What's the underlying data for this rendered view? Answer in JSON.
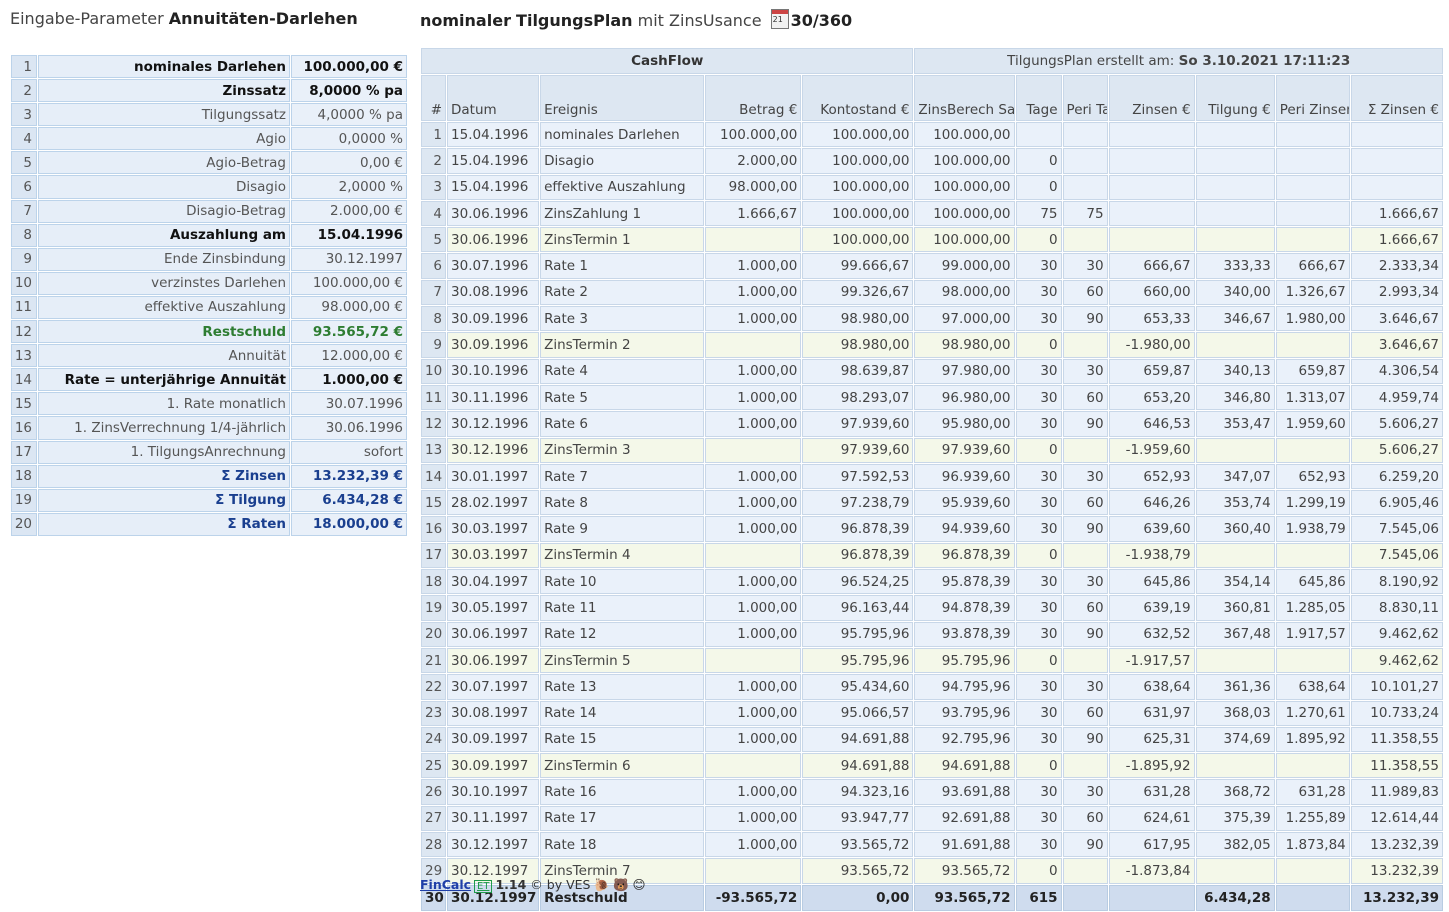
{
  "left_title": {
    "prefix": "Eingabe-Parameter",
    "bold": "Annuitäten-Darlehen"
  },
  "right_title": {
    "bold1": "nominaler",
    "bold2": "TilgungsPlan",
    "mid": "mit ZinsUsance",
    "usance": "30/360",
    "calendar_day": "21"
  },
  "params": [
    {
      "n": "1",
      "label": "nominales Darlehen",
      "value": "100.000,00 €",
      "style": "b"
    },
    {
      "n": "2",
      "label": "Zinssatz",
      "value": "8,0000 % pa",
      "style": "b"
    },
    {
      "n": "3",
      "label": "Tilgungssatz",
      "value": "4,0000 % pa",
      "style": ""
    },
    {
      "n": "4",
      "label": "Agio",
      "value": "0,0000 %",
      "style": ""
    },
    {
      "n": "5",
      "label": "Agio-Betrag",
      "value": "0,00 €",
      "style": ""
    },
    {
      "n": "6",
      "label": "Disagio",
      "value": "2,0000 %",
      "style": ""
    },
    {
      "n": "7",
      "label": "Disagio-Betrag",
      "value": "2.000,00 €",
      "style": ""
    },
    {
      "n": "8",
      "label": "Auszahlung am",
      "value": "15.04.1996",
      "style": "b"
    },
    {
      "n": "9",
      "label": "Ende Zinsbindung",
      "value": "30.12.1997",
      "style": ""
    },
    {
      "n": "10",
      "label": "verzinstes Darlehen",
      "value": "100.000,00 €",
      "style": ""
    },
    {
      "n": "11",
      "label": "effektive Auszahlung",
      "value": "98.000,00 €",
      "style": ""
    },
    {
      "n": "12",
      "label": "Restschuld",
      "value": "93.565,72 €",
      "style": "g"
    },
    {
      "n": "13",
      "label": "Annuität",
      "value": "12.000,00 €",
      "style": ""
    },
    {
      "n": "14",
      "label": "Rate = unterjährige Annuität",
      "value": "1.000,00 €",
      "style": "b"
    },
    {
      "n": "15",
      "label": "1. Rate monatlich",
      "value": "30.07.1996",
      "style": ""
    },
    {
      "n": "16",
      "label": "1. ZinsVerrechnung 1/4-jährlich",
      "value": "30.06.1996",
      "style": ""
    },
    {
      "n": "17",
      "label": "1. TilgungsAnrechnung",
      "value": "sofort",
      "style": ""
    },
    {
      "n": "18",
      "label": "Σ Zinsen",
      "value": "13.232,39 €",
      "style": "s"
    },
    {
      "n": "19",
      "label": "Σ Tilgung",
      "value": "6.434,28 €",
      "style": "s"
    },
    {
      "n": "20",
      "label": "Σ Raten",
      "value": "18.000,00 €",
      "style": "s"
    }
  ],
  "plan_head": {
    "cashflow": "CashFlow",
    "created_label": "TilgungsPlan erstellt am:",
    "created_value": "So 3.10.2021 17:11:23",
    "cols": [
      "#",
      "Datum",
      "Ereignis",
      "Betrag €",
      "Kontostand €",
      "ZinsBerech Saldo €",
      "Tage",
      "Peri Tage",
      "Zinsen €",
      "Tilgung €",
      "Peri Zinsen €",
      "Σ Zinsen €"
    ]
  },
  "plan_rows": [
    {
      "n": "1",
      "datum": "15.04.1996",
      "ereignis": "nominales Darlehen",
      "betrag": "100.000,00",
      "konto": "100.000,00",
      "saldo": "100.000,00",
      "tage": "",
      "peri_tage": "",
      "zinsen": "",
      "tilgung": "",
      "peri_zinsen": "",
      "sum_zinsen": "",
      "termin": false
    },
    {
      "n": "2",
      "datum": "15.04.1996",
      "ereignis": "Disagio",
      "betrag": "2.000,00",
      "konto": "100.000,00",
      "saldo": "100.000,00",
      "tage": "0",
      "peri_tage": "",
      "zinsen": "",
      "tilgung": "",
      "peri_zinsen": "",
      "sum_zinsen": "",
      "termin": false
    },
    {
      "n": "3",
      "datum": "15.04.1996",
      "ereignis": "effektive Auszahlung",
      "betrag": "98.000,00",
      "konto": "100.000,00",
      "saldo": "100.000,00",
      "tage": "0",
      "peri_tage": "",
      "zinsen": "",
      "tilgung": "",
      "peri_zinsen": "",
      "sum_zinsen": "",
      "termin": false
    },
    {
      "n": "4",
      "datum": "30.06.1996",
      "ereignis": "ZinsZahlung 1",
      "betrag": "1.666,67",
      "konto": "100.000,00",
      "saldo": "100.000,00",
      "tage": "75",
      "peri_tage": "75",
      "zinsen": "",
      "tilgung": "",
      "peri_zinsen": "",
      "sum_zinsen": "1.666,67",
      "termin": false
    },
    {
      "n": "5",
      "datum": "30.06.1996",
      "ereignis": "ZinsTermin 1",
      "betrag": "",
      "konto": "100.000,00",
      "saldo": "100.000,00",
      "tage": "0",
      "peri_tage": "",
      "zinsen": "",
      "tilgung": "",
      "peri_zinsen": "",
      "sum_zinsen": "1.666,67",
      "termin": true
    },
    {
      "n": "6",
      "datum": "30.07.1996",
      "ereignis": "Rate 1",
      "betrag": "1.000,00",
      "konto": "99.666,67",
      "saldo": "99.000,00",
      "tage": "30",
      "peri_tage": "30",
      "zinsen": "666,67",
      "tilgung": "333,33",
      "peri_zinsen": "666,67",
      "sum_zinsen": "2.333,34",
      "termin": false
    },
    {
      "n": "7",
      "datum": "30.08.1996",
      "ereignis": "Rate 2",
      "betrag": "1.000,00",
      "konto": "99.326,67",
      "saldo": "98.000,00",
      "tage": "30",
      "peri_tage": "60",
      "zinsen": "660,00",
      "tilgung": "340,00",
      "peri_zinsen": "1.326,67",
      "sum_zinsen": "2.993,34",
      "termin": false
    },
    {
      "n": "8",
      "datum": "30.09.1996",
      "ereignis": "Rate 3",
      "betrag": "1.000,00",
      "konto": "98.980,00",
      "saldo": "97.000,00",
      "tage": "30",
      "peri_tage": "90",
      "zinsen": "653,33",
      "tilgung": "346,67",
      "peri_zinsen": "1.980,00",
      "sum_zinsen": "3.646,67",
      "termin": false
    },
    {
      "n": "9",
      "datum": "30.09.1996",
      "ereignis": "ZinsTermin 2",
      "betrag": "",
      "konto": "98.980,00",
      "saldo": "98.980,00",
      "tage": "0",
      "peri_tage": "",
      "zinsen": "-1.980,00",
      "tilgung": "",
      "peri_zinsen": "",
      "sum_zinsen": "3.646,67",
      "termin": true
    },
    {
      "n": "10",
      "datum": "30.10.1996",
      "ereignis": "Rate 4",
      "betrag": "1.000,00",
      "konto": "98.639,87",
      "saldo": "97.980,00",
      "tage": "30",
      "peri_tage": "30",
      "zinsen": "659,87",
      "tilgung": "340,13",
      "peri_zinsen": "659,87",
      "sum_zinsen": "4.306,54",
      "termin": false
    },
    {
      "n": "11",
      "datum": "30.11.1996",
      "ereignis": "Rate 5",
      "betrag": "1.000,00",
      "konto": "98.293,07",
      "saldo": "96.980,00",
      "tage": "30",
      "peri_tage": "60",
      "zinsen": "653,20",
      "tilgung": "346,80",
      "peri_zinsen": "1.313,07",
      "sum_zinsen": "4.959,74",
      "termin": false
    },
    {
      "n": "12",
      "datum": "30.12.1996",
      "ereignis": "Rate 6",
      "betrag": "1.000,00",
      "konto": "97.939,60",
      "saldo": "95.980,00",
      "tage": "30",
      "peri_tage": "90",
      "zinsen": "646,53",
      "tilgung": "353,47",
      "peri_zinsen": "1.959,60",
      "sum_zinsen": "5.606,27",
      "termin": false
    },
    {
      "n": "13",
      "datum": "30.12.1996",
      "ereignis": "ZinsTermin 3",
      "betrag": "",
      "konto": "97.939,60",
      "saldo": "97.939,60",
      "tage": "0",
      "peri_tage": "",
      "zinsen": "-1.959,60",
      "tilgung": "",
      "peri_zinsen": "",
      "sum_zinsen": "5.606,27",
      "termin": true
    },
    {
      "n": "14",
      "datum": "30.01.1997",
      "ereignis": "Rate 7",
      "betrag": "1.000,00",
      "konto": "97.592,53",
      "saldo": "96.939,60",
      "tage": "30",
      "peri_tage": "30",
      "zinsen": "652,93",
      "tilgung": "347,07",
      "peri_zinsen": "652,93",
      "sum_zinsen": "6.259,20",
      "termin": false
    },
    {
      "n": "15",
      "datum": "28.02.1997",
      "ereignis": "Rate 8",
      "betrag": "1.000,00",
      "konto": "97.238,79",
      "saldo": "95.939,60",
      "tage": "30",
      "peri_tage": "60",
      "zinsen": "646,26",
      "tilgung": "353,74",
      "peri_zinsen": "1.299,19",
      "sum_zinsen": "6.905,46",
      "termin": false
    },
    {
      "n": "16",
      "datum": "30.03.1997",
      "ereignis": "Rate 9",
      "betrag": "1.000,00",
      "konto": "96.878,39",
      "saldo": "94.939,60",
      "tage": "30",
      "peri_tage": "90",
      "zinsen": "639,60",
      "tilgung": "360,40",
      "peri_zinsen": "1.938,79",
      "sum_zinsen": "7.545,06",
      "termin": false
    },
    {
      "n": "17",
      "datum": "30.03.1997",
      "ereignis": "ZinsTermin 4",
      "betrag": "",
      "konto": "96.878,39",
      "saldo": "96.878,39",
      "tage": "0",
      "peri_tage": "",
      "zinsen": "-1.938,79",
      "tilgung": "",
      "peri_zinsen": "",
      "sum_zinsen": "7.545,06",
      "termin": true
    },
    {
      "n": "18",
      "datum": "30.04.1997",
      "ereignis": "Rate 10",
      "betrag": "1.000,00",
      "konto": "96.524,25",
      "saldo": "95.878,39",
      "tage": "30",
      "peri_tage": "30",
      "zinsen": "645,86",
      "tilgung": "354,14",
      "peri_zinsen": "645,86",
      "sum_zinsen": "8.190,92",
      "termin": false
    },
    {
      "n": "19",
      "datum": "30.05.1997",
      "ereignis": "Rate 11",
      "betrag": "1.000,00",
      "konto": "96.163,44",
      "saldo": "94.878,39",
      "tage": "30",
      "peri_tage": "60",
      "zinsen": "639,19",
      "tilgung": "360,81",
      "peri_zinsen": "1.285,05",
      "sum_zinsen": "8.830,11",
      "termin": false
    },
    {
      "n": "20",
      "datum": "30.06.1997",
      "ereignis": "Rate 12",
      "betrag": "1.000,00",
      "konto": "95.795,96",
      "saldo": "93.878,39",
      "tage": "30",
      "peri_tage": "90",
      "zinsen": "632,52",
      "tilgung": "367,48",
      "peri_zinsen": "1.917,57",
      "sum_zinsen": "9.462,62",
      "termin": false
    },
    {
      "n": "21",
      "datum": "30.06.1997",
      "ereignis": "ZinsTermin 5",
      "betrag": "",
      "konto": "95.795,96",
      "saldo": "95.795,96",
      "tage": "0",
      "peri_tage": "",
      "zinsen": "-1.917,57",
      "tilgung": "",
      "peri_zinsen": "",
      "sum_zinsen": "9.462,62",
      "termin": true
    },
    {
      "n": "22",
      "datum": "30.07.1997",
      "ereignis": "Rate 13",
      "betrag": "1.000,00",
      "konto": "95.434,60",
      "saldo": "94.795,96",
      "tage": "30",
      "peri_tage": "30",
      "zinsen": "638,64",
      "tilgung": "361,36",
      "peri_zinsen": "638,64",
      "sum_zinsen": "10.101,27",
      "termin": false
    },
    {
      "n": "23",
      "datum": "30.08.1997",
      "ereignis": "Rate 14",
      "betrag": "1.000,00",
      "konto": "95.066,57",
      "saldo": "93.795,96",
      "tage": "30",
      "peri_tage": "60",
      "zinsen": "631,97",
      "tilgung": "368,03",
      "peri_zinsen": "1.270,61",
      "sum_zinsen": "10.733,24",
      "termin": false
    },
    {
      "n": "24",
      "datum": "30.09.1997",
      "ereignis": "Rate 15",
      "betrag": "1.000,00",
      "konto": "94.691,88",
      "saldo": "92.795,96",
      "tage": "30",
      "peri_tage": "90",
      "zinsen": "625,31",
      "tilgung": "374,69",
      "peri_zinsen": "1.895,92",
      "sum_zinsen": "11.358,55",
      "termin": false
    },
    {
      "n": "25",
      "datum": "30.09.1997",
      "ereignis": "ZinsTermin 6",
      "betrag": "",
      "konto": "94.691,88",
      "saldo": "94.691,88",
      "tage": "0",
      "peri_tage": "",
      "zinsen": "-1.895,92",
      "tilgung": "",
      "peri_zinsen": "",
      "sum_zinsen": "11.358,55",
      "termin": true
    },
    {
      "n": "26",
      "datum": "30.10.1997",
      "ereignis": "Rate 16",
      "betrag": "1.000,00",
      "konto": "94.323,16",
      "saldo": "93.691,88",
      "tage": "30",
      "peri_tage": "30",
      "zinsen": "631,28",
      "tilgung": "368,72",
      "peri_zinsen": "631,28",
      "sum_zinsen": "11.989,83",
      "termin": false
    },
    {
      "n": "27",
      "datum": "30.11.1997",
      "ereignis": "Rate 17",
      "betrag": "1.000,00",
      "konto": "93.947,77",
      "saldo": "92.691,88",
      "tage": "30",
      "peri_tage": "60",
      "zinsen": "624,61",
      "tilgung": "375,39",
      "peri_zinsen": "1.255,89",
      "sum_zinsen": "12.614,44",
      "termin": false
    },
    {
      "n": "28",
      "datum": "30.12.1997",
      "ereignis": "Rate 18",
      "betrag": "1.000,00",
      "konto": "93.565,72",
      "saldo": "91.691,88",
      "tage": "30",
      "peri_tage": "90",
      "zinsen": "617,95",
      "tilgung": "382,05",
      "peri_zinsen": "1.873,84",
      "sum_zinsen": "13.232,39",
      "termin": false
    },
    {
      "n": "29",
      "datum": "30.12.1997",
      "ereignis": "ZinsTermin 7",
      "betrag": "",
      "konto": "93.565,72",
      "saldo": "93.565,72",
      "tage": "0",
      "peri_tage": "",
      "zinsen": "-1.873,84",
      "tilgung": "",
      "peri_zinsen": "",
      "sum_zinsen": "13.232,39",
      "termin": true
    }
  ],
  "plan_total": {
    "n": "30",
    "datum": "30.12.1997",
    "ereignis": "Restschuld",
    "betrag": "-93.565,72",
    "konto": "0,00",
    "saldo": "93.565,72",
    "tage": "615",
    "peri_tage": "",
    "zinsen": "",
    "tilgung": "6.434,28",
    "peri_zinsen": "",
    "sum_zinsen": "13.232,39"
  },
  "footer": {
    "link": "FinCalc",
    "badge": "ET",
    "version": "1.14",
    "copyright": "© by VES",
    "emoji": "🐌 🐻 😊"
  }
}
